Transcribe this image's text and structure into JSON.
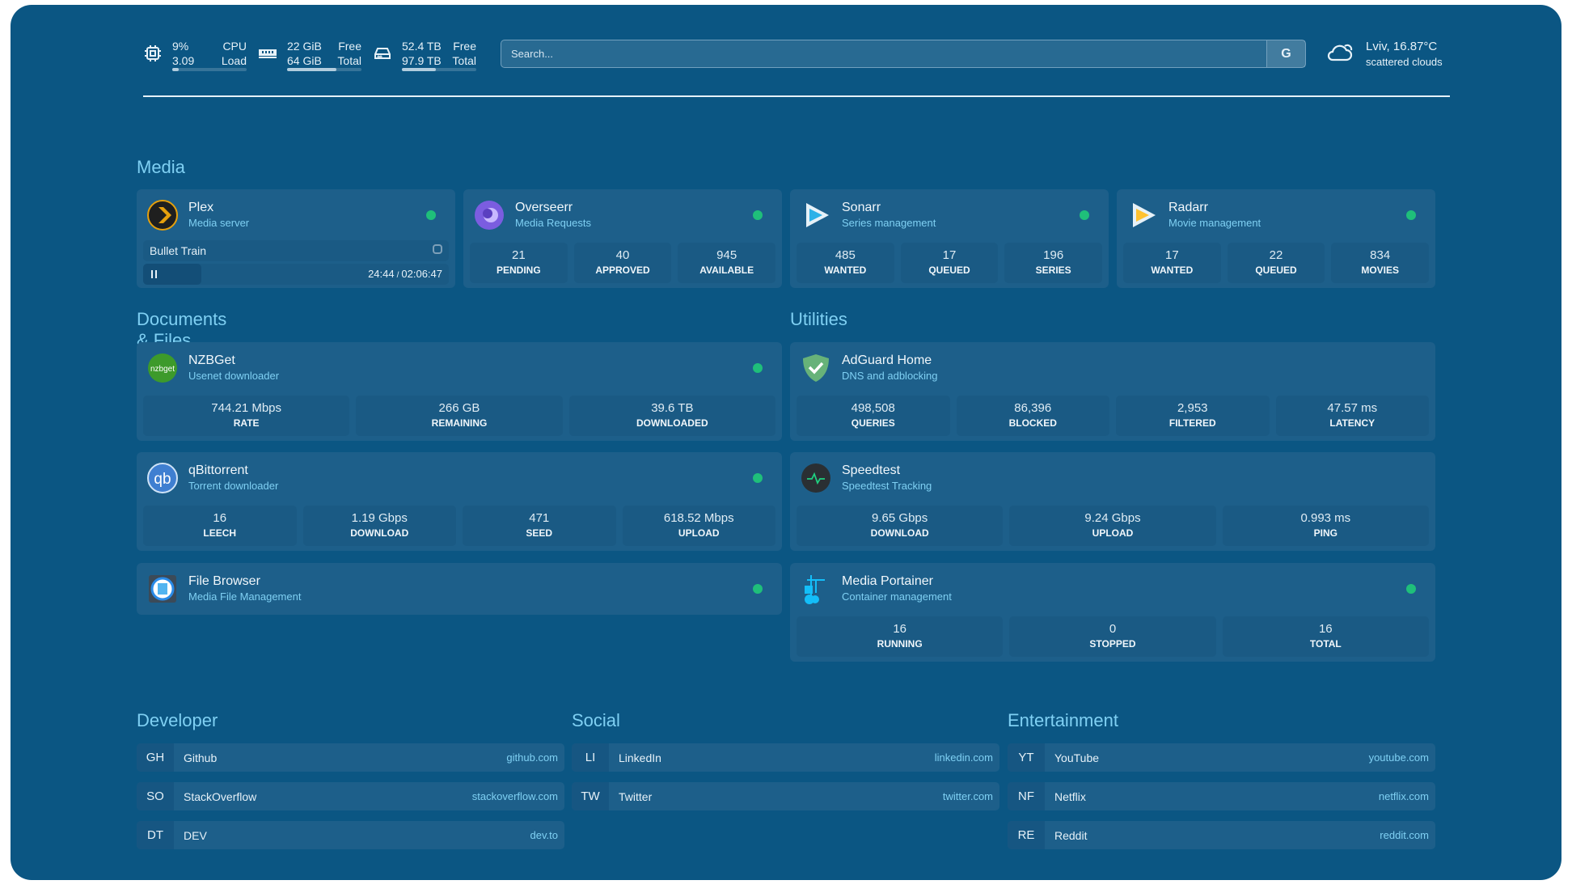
{
  "colors": {
    "background": "#0b5683",
    "card": "#1d5f8a",
    "accent": "#7fd0f3",
    "status_ok": "#1fbf7a"
  },
  "resources": {
    "cpu": {
      "icon": "cpu-icon",
      "value1": "9%",
      "label1": "CPU",
      "value2": "3.09",
      "label2": "Load",
      "percent": 9
    },
    "memory": {
      "icon": "memory-icon",
      "value1": "22 GiB",
      "label1": "Free",
      "value2": "64 GiB",
      "label2": "Total",
      "percent": 66
    },
    "disk": {
      "icon": "disk-icon",
      "value1": "52.4 TB",
      "label1": "Free",
      "value2": "97.9 TB",
      "label2": "Total",
      "percent": 46
    }
  },
  "search": {
    "placeholder": "Search...",
    "button": "G"
  },
  "weather": {
    "icon": "cloud-sun-icon",
    "location_temp": "Lviv, 16.87°C",
    "condition": "scattered clouds"
  },
  "sections": {
    "media": "Media",
    "documents": "Documents & Files",
    "utilities": "Utilities",
    "developer": "Developer",
    "social": "Social",
    "entertainment": "Entertainment"
  },
  "services": [
    {
      "id": "plex",
      "title": "Plex",
      "subtitle": "Media server",
      "icon": "plex-icon",
      "status": "online",
      "now_playing": {
        "title": "Bullet Train",
        "position": "24:44",
        "duration": "02:06:47",
        "separator": "/",
        "state": "paused",
        "progress_percent": 19
      }
    },
    {
      "id": "overseerr",
      "title": "Overseerr",
      "subtitle": "Media Requests",
      "icon": "overseerr-icon",
      "status": "online",
      "stats": [
        {
          "value": "21",
          "label": "PENDING"
        },
        {
          "value": "40",
          "label": "APPROVED"
        },
        {
          "value": "945",
          "label": "AVAILABLE"
        }
      ]
    },
    {
      "id": "sonarr",
      "title": "Sonarr",
      "subtitle": "Series management",
      "icon": "sonarr-icon",
      "status": "online",
      "stats": [
        {
          "value": "485",
          "label": "WANTED"
        },
        {
          "value": "17",
          "label": "QUEUED"
        },
        {
          "value": "196",
          "label": "SERIES"
        }
      ]
    },
    {
      "id": "radarr",
      "title": "Radarr",
      "subtitle": "Movie management",
      "icon": "radarr-icon",
      "status": "online",
      "stats": [
        {
          "value": "17",
          "label": "WANTED"
        },
        {
          "value": "22",
          "label": "QUEUED"
        },
        {
          "value": "834",
          "label": "MOVIES"
        }
      ]
    },
    {
      "id": "nzbget",
      "title": "NZBGet",
      "subtitle": "Usenet downloader",
      "icon": "nzbget-icon",
      "status": "online",
      "stats": [
        {
          "value": "744.21 Mbps",
          "label": "RATE"
        },
        {
          "value": "266 GB",
          "label": "REMAINING"
        },
        {
          "value": "39.6 TB",
          "label": "DOWNLOADED"
        }
      ]
    },
    {
      "id": "qbittorrent",
      "title": "qBittorrent",
      "subtitle": "Torrent downloader",
      "icon": "qbittorrent-icon",
      "status": "online",
      "stats": [
        {
          "value": "16",
          "label": "LEECH"
        },
        {
          "value": "1.19 Gbps",
          "label": "DOWNLOAD"
        },
        {
          "value": "471",
          "label": "SEED"
        },
        {
          "value": "618.52 Mbps",
          "label": "UPLOAD"
        }
      ]
    },
    {
      "id": "filebrowser",
      "title": "File Browser",
      "subtitle": "Media File Management",
      "icon": "file-browser-icon",
      "status": "online"
    },
    {
      "id": "adguard",
      "title": "AdGuard Home",
      "subtitle": "DNS and adblocking",
      "icon": "adguard-icon",
      "stats": [
        {
          "value": "498,508",
          "label": "QUERIES"
        },
        {
          "value": "86,396",
          "label": "BLOCKED"
        },
        {
          "value": "2,953",
          "label": "FILTERED"
        },
        {
          "value": "47.57 ms",
          "label": "LATENCY"
        }
      ]
    },
    {
      "id": "speedtest",
      "title": "Speedtest",
      "subtitle": "Speedtest Tracking",
      "icon": "speedtest-icon",
      "stats": [
        {
          "value": "9.65 Gbps",
          "label": "DOWNLOAD"
        },
        {
          "value": "9.24 Gbps",
          "label": "UPLOAD"
        },
        {
          "value": "0.993 ms",
          "label": "PING"
        }
      ]
    },
    {
      "id": "portainer",
      "title": "Media Portainer",
      "subtitle": "Container management",
      "icon": "portainer-icon",
      "status": "online",
      "stats": [
        {
          "value": "16",
          "label": "RUNNING"
        },
        {
          "value": "0",
          "label": "STOPPED"
        },
        {
          "value": "16",
          "label": "TOTAL"
        }
      ]
    }
  ],
  "bookmarks": {
    "developer": [
      {
        "abbr": "GH",
        "name": "Github",
        "url": "github.com"
      },
      {
        "abbr": "SO",
        "name": "StackOverflow",
        "url": "stackoverflow.com"
      },
      {
        "abbr": "DT",
        "name": "DEV",
        "url": "dev.to"
      }
    ],
    "social": [
      {
        "abbr": "LI",
        "name": "LinkedIn",
        "url": "linkedin.com"
      },
      {
        "abbr": "TW",
        "name": "Twitter",
        "url": "twitter.com"
      }
    ],
    "entertainment": [
      {
        "abbr": "YT",
        "name": "YouTube",
        "url": "youtube.com"
      },
      {
        "abbr": "NF",
        "name": "Netflix",
        "url": "netflix.com"
      },
      {
        "abbr": "RE",
        "name": "Reddit",
        "url": "reddit.com"
      }
    ]
  }
}
